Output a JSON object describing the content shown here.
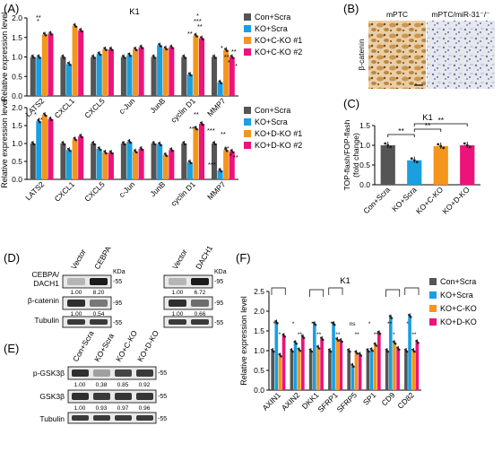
{
  "panel_labels": {
    "A": "(A)",
    "B": "(B)",
    "C": "(C)",
    "D": "(D)",
    "E": "(E)",
    "F": "(F)"
  },
  "colors": {
    "con_scra": "#555555",
    "ko_scra": "#1a9fe0",
    "ko_c": "#f4951c",
    "ko_d": "#ec137a"
  },
  "sig": {
    "A_top": [
      "**",
      "*",
      "*",
      "***",
      "**",
      "**",
      "*",
      "**",
      "*",
      "**",
      "*"
    ],
    "A_bot": [
      "*",
      "**",
      "**",
      "***",
      "***",
      "**",
      "**",
      "*",
      "**",
      "***"
    ],
    "C": [
      "**",
      "**",
      "**"
    ],
    "F": [
      "**",
      "*",
      "*",
      "**",
      "*",
      "**",
      "**",
      "**",
      "ns",
      "**",
      "*",
      "**",
      "**",
      "*",
      "*",
      "**",
      "*",
      "*"
    ]
  },
  "chart_data": [
    {
      "panel": "A-top",
      "type": "bar",
      "title": "K1",
      "ylabel": "Relative expression level",
      "ylim": [
        0,
        2.0
      ],
      "yticks": [
        "0.0",
        "0.5",
        "1.0",
        "1.5",
        "2.0"
      ],
      "categories": [
        "LATS2",
        "CXCL1",
        "CXCL5",
        "c-Jun",
        "JunB",
        "cyclin D1",
        "MMP7"
      ],
      "series": [
        {
          "name": "Con+Scra",
          "values": [
            1.0,
            1.0,
            1.0,
            1.0,
            1.0,
            1.0,
            1.0
          ]
        },
        {
          "name": "KO+Scra",
          "values": [
            1.0,
            0.82,
            1.08,
            1.05,
            1.3,
            0.55,
            0.35
          ]
        },
        {
          "name": "KO+C-KO #1",
          "values": [
            1.58,
            1.8,
            1.2,
            1.2,
            1.22,
            1.55,
            1.18
          ]
        },
        {
          "name": "KO+C-KO #2",
          "values": [
            1.6,
            1.68,
            1.2,
            1.25,
            1.25,
            1.48,
            1.0
          ]
        }
      ],
      "legend": "right"
    },
    {
      "panel": "A-bottom",
      "type": "bar",
      "ylabel": "Relative expression level",
      "ylim": [
        0,
        2.0
      ],
      "yticks": [
        "0.0",
        "0.5",
        "1.0",
        "1.5",
        "2.0"
      ],
      "categories": [
        "LATS2",
        "CXCL1",
        "CXCL5",
        "c-Jun",
        "JunB",
        "cyclin D1",
        "MMP7"
      ],
      "series": [
        {
          "name": "Con+Scra",
          "values": [
            1.0,
            1.0,
            1.0,
            1.0,
            1.0,
            1.0,
            1.0
          ]
        },
        {
          "name": "KO+Scra",
          "values": [
            1.62,
            0.82,
            0.85,
            1.05,
            0.98,
            0.48,
            0.25
          ]
        },
        {
          "name": "KO+D-KO #1",
          "values": [
            1.8,
            1.12,
            0.75,
            0.78,
            0.68,
            1.42,
            0.82
          ]
        },
        {
          "name": "KO+D-KO #2",
          "values": [
            1.68,
            1.2,
            0.75,
            0.85,
            0.82,
            1.55,
            0.78
          ]
        }
      ],
      "legend": "right"
    },
    {
      "panel": "C",
      "type": "bar",
      "title": "K1",
      "ylabel": "TOP-flash/FOP-flash\n(fold change)",
      "ylim": [
        0,
        1.5
      ],
      "yticks": [
        "0.0",
        "0.5",
        "1.0",
        "1.5"
      ],
      "categories": [
        "Con+Scra",
        "KO+Scra",
        "KO+C-KO",
        "KO+D-KO"
      ],
      "values": [
        1.0,
        0.62,
        0.98,
        1.0
      ]
    },
    {
      "panel": "F",
      "type": "bar",
      "title": "K1",
      "ylabel": "Relative expression level",
      "ylim": [
        0,
        2.5
      ],
      "yticks": [
        "0.0",
        "0.5",
        "1.0",
        "1.5",
        "2.0",
        "2.5"
      ],
      "categories": [
        "AXIN1",
        "AXIN2",
        "DKK1",
        "SFRP1",
        "SFRP5",
        "SP1",
        "CD9",
        "CD82"
      ],
      "series": [
        {
          "name": "Con+Scra",
          "values": [
            1.0,
            1.0,
            1.0,
            1.0,
            1.0,
            1.0,
            1.0,
            1.0
          ]
        },
        {
          "name": "KO+Scra",
          "values": [
            1.72,
            1.2,
            1.68,
            1.68,
            0.62,
            1.02,
            1.85,
            1.88
          ]
        },
        {
          "name": "KO+C-KO",
          "values": [
            0.88,
            1.02,
            1.08,
            1.28,
            0.95,
            1.15,
            1.2,
            1.0
          ]
        },
        {
          "name": "KO+D-KO",
          "values": [
            1.38,
            1.35,
            1.3,
            1.25,
            0.9,
            1.45,
            1.05,
            1.22
          ]
        }
      ],
      "legend": "right"
    }
  ],
  "panelB": {
    "left_label": "mPTC",
    "right_label": "mPTC/miR-31⁻/⁻",
    "ylabel": "β-catenin"
  },
  "panelD": {
    "blot1": {
      "lanes": [
        "Vector",
        "CEBPA"
      ],
      "kda": "KDa",
      "rows": [
        {
          "label": "CEBPA/\nDACH1",
          "mw": "-55",
          "values": [
            "1.00",
            "8.20"
          ]
        },
        {
          "label": "β-catenin",
          "mw": "-95",
          "values": [
            "1.00",
            "0.54"
          ]
        },
        {
          "label": "Tubulin",
          "mw": "-55",
          "values": []
        }
      ]
    },
    "blot2": {
      "lanes": [
        "Vector",
        "DACH1"
      ],
      "kda": "KDa",
      "rows": [
        {
          "label": "",
          "mw": "-95",
          "values": [
            "1.00",
            "6.72"
          ]
        },
        {
          "label": "",
          "mw": "-95",
          "values": [
            "1.00",
            "0.66"
          ]
        },
        {
          "label": "",
          "mw": "-55",
          "values": []
        }
      ]
    }
  },
  "panelE": {
    "lanes": [
      "Con+Scra",
      "KO+Scra",
      "KO+C-KO",
      "KO+D-KO"
    ],
    "rows": [
      {
        "label": "p-GSK3β",
        "mw": "-55",
        "values": [
          "1.00",
          "0.38",
          "0.85",
          "0.92"
        ]
      },
      {
        "label": "GSK3β",
        "mw": "-55",
        "values": [
          "1.00",
          "0.93",
          "0.97",
          "0.96"
        ]
      },
      {
        "label": "Tubulin",
        "mw": "-55",
        "values": []
      }
    ]
  }
}
